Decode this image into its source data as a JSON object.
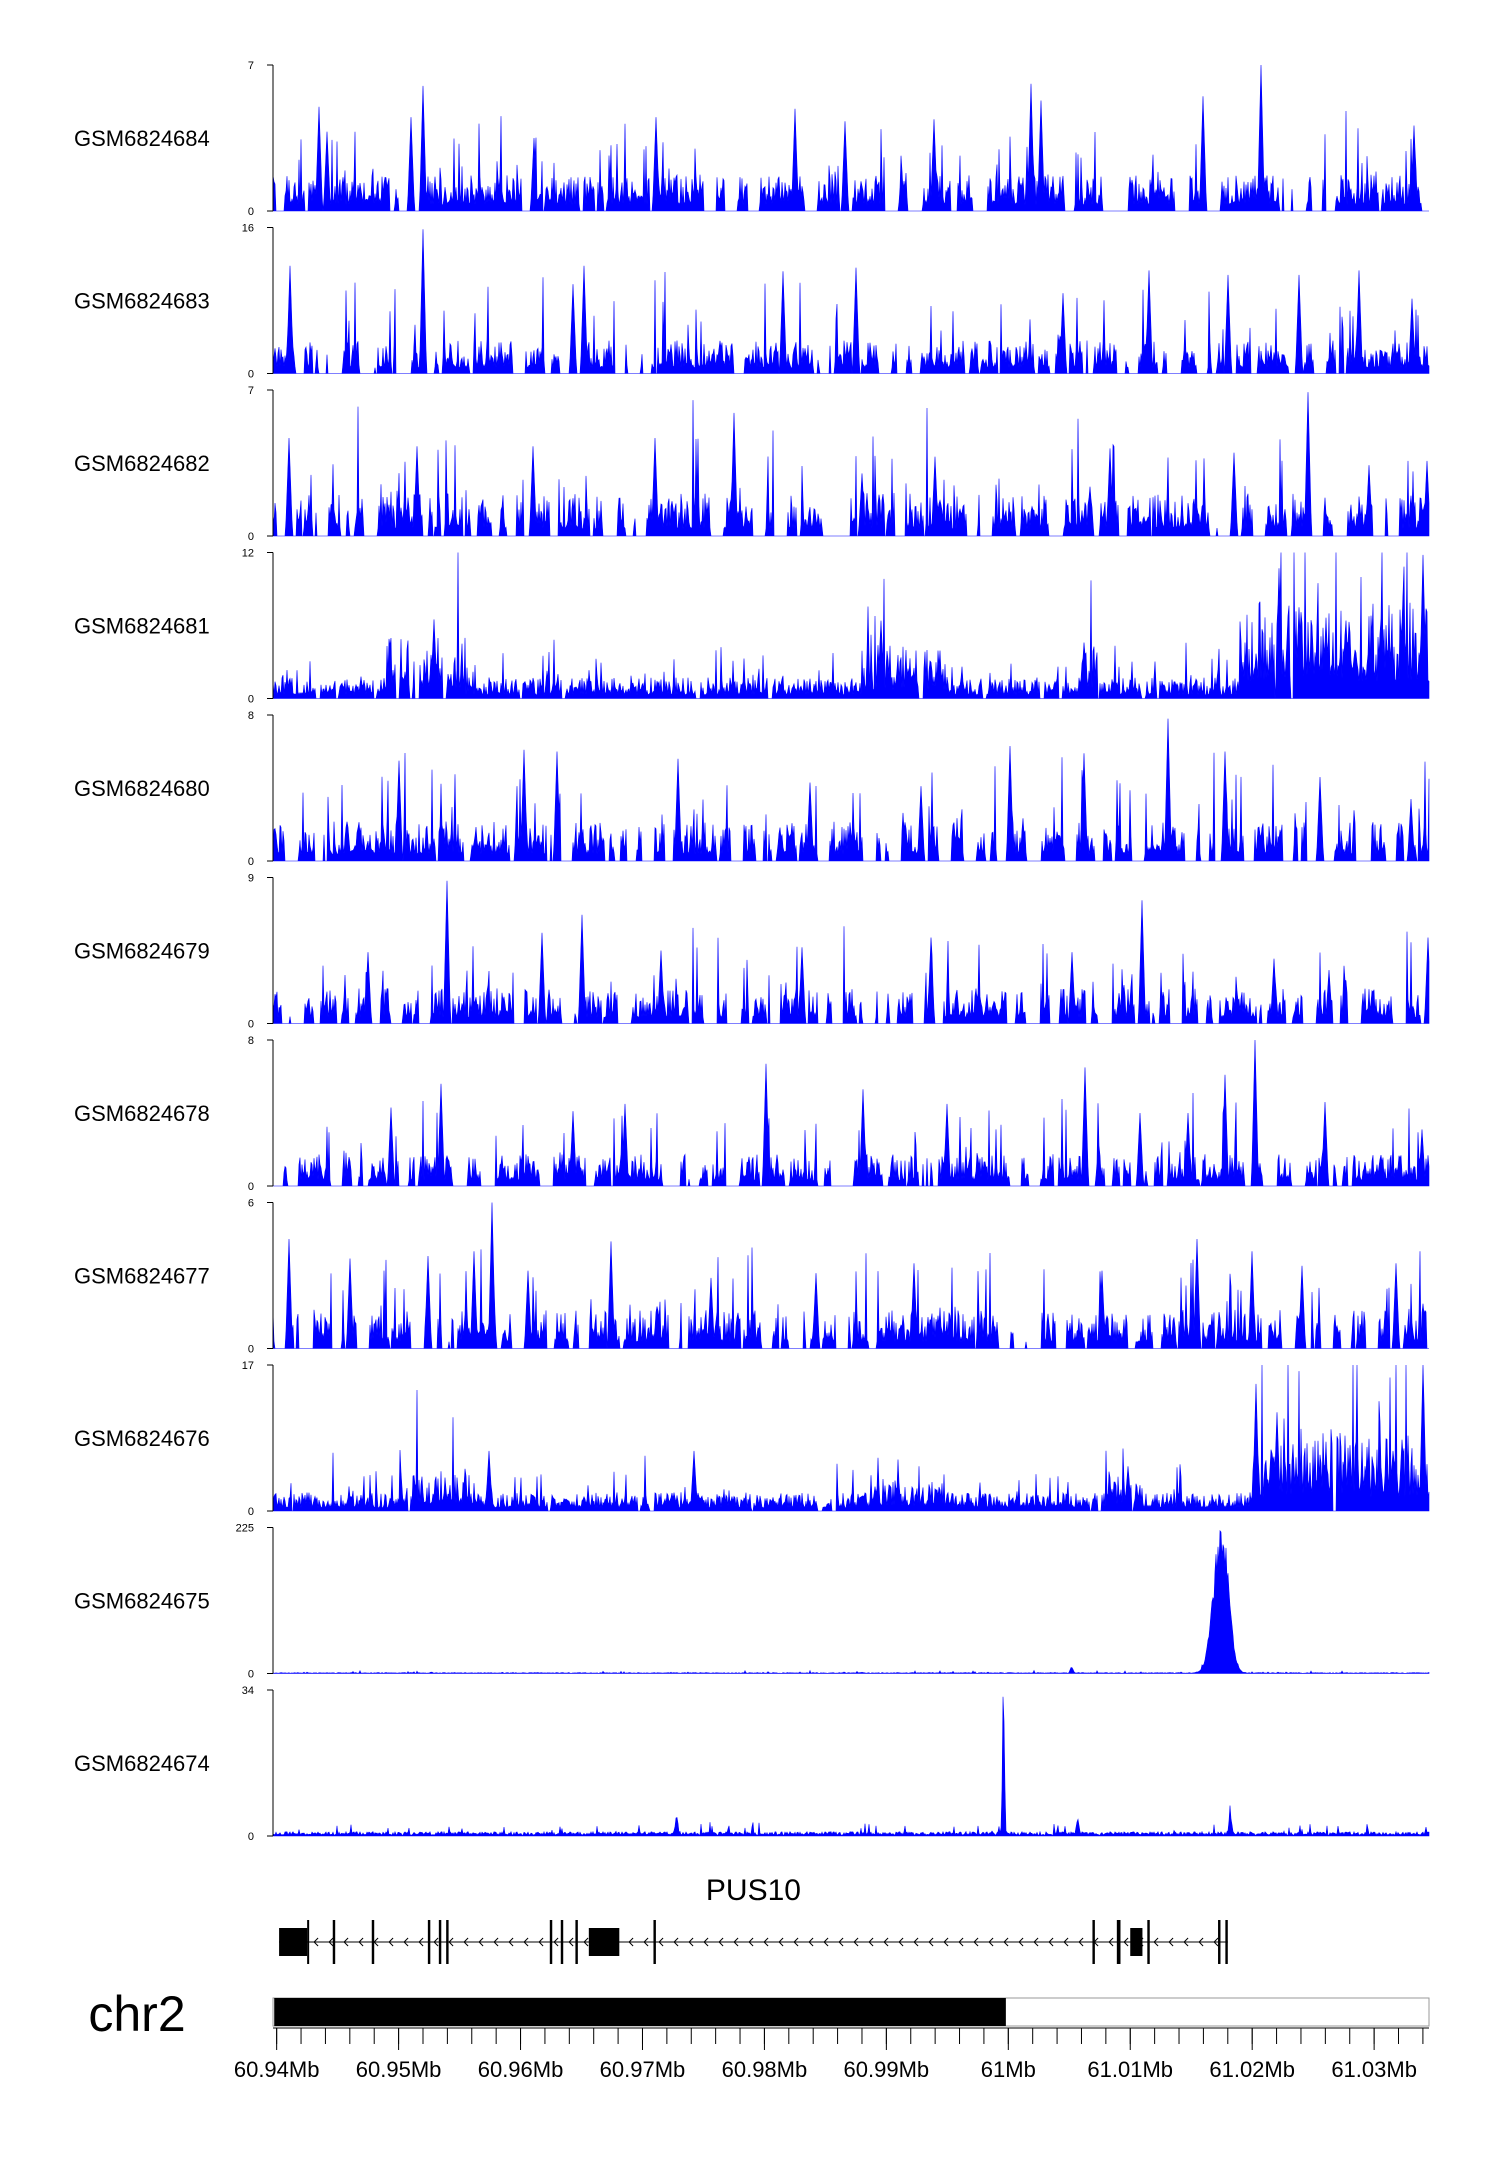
{
  "chart_data": {
    "type": "area",
    "x_range": [
      60.9397,
      61.0345
    ],
    "colors": {
      "signal": "#0000ff",
      "axis": "#000000",
      "chrom_fill": "#000000"
    },
    "tracks": [
      {
        "name": "GSM6824684",
        "ymax": 7,
        "ymin": 0,
        "profile": "sparse",
        "base": 1.2,
        "spikes": [
          [
            60.9441,
            3.8
          ],
          [
            60.9435,
            5.0
          ],
          [
            60.952,
            6.0
          ],
          [
            60.951,
            4.5
          ],
          [
            60.9611,
            3.5
          ],
          [
            60.9711,
            4.5
          ],
          [
            60.9825,
            4.9
          ],
          [
            60.9866,
            4.3
          ],
          [
            60.9939,
            4.4
          ],
          [
            61.0019,
            6.1
          ],
          [
            61.0027,
            5.3
          ],
          [
            61.016,
            5.5
          ],
          [
            61.0207,
            7.0
          ],
          [
            61.0333,
            4.1
          ]
        ]
      },
      {
        "name": "GSM6824683",
        "ymax": 16,
        "ymin": 0,
        "profile": "sparse",
        "base": 2.5,
        "spikes": [
          [
            60.9411,
            11.8
          ],
          [
            60.952,
            15.8
          ],
          [
            60.9652,
            11.8
          ],
          [
            60.9643,
            9.8
          ],
          [
            60.9815,
            11.2
          ],
          [
            60.9875,
            11.6
          ],
          [
            61.0045,
            8.8
          ],
          [
            61.0115,
            11.3
          ],
          [
            61.018,
            10.8
          ],
          [
            61.0238,
            10.8
          ],
          [
            61.0288,
            11.3
          ],
          [
            61.0331,
            8.2
          ]
        ]
      },
      {
        "name": "GSM6824682",
        "ymax": 7,
        "ymin": 0,
        "profile": "sparse",
        "base": 1.4,
        "spikes": [
          [
            60.941,
            4.7
          ],
          [
            60.9515,
            4.3
          ],
          [
            60.961,
            4.3
          ],
          [
            60.971,
            4.7
          ],
          [
            60.9775,
            5.9
          ],
          [
            60.988,
            3.0
          ],
          [
            60.994,
            3.8
          ],
          [
            61.0083,
            4.2
          ],
          [
            61.0185,
            4.0
          ],
          [
            61.0246,
            6.9
          ],
          [
            61.0296,
            3.4
          ],
          [
            61.0343,
            3.6
          ]
        ]
      },
      {
        "name": "GSM6824681",
        "ymax": 12,
        "ymin": 0,
        "profile": "dense",
        "base": 1.2,
        "regions": [
          [
            60.949,
            60.9555,
            3.5
          ],
          [
            60.988,
            60.995,
            2.8
          ],
          [
            61.006,
            61.0075,
            3.2
          ],
          [
            61.019,
            61.0345,
            5.5
          ]
        ],
        "spikes": [
          [
            60.9529,
            6.5
          ],
          [
            60.9896,
            6.4
          ],
          [
            61.0062,
            4.6
          ],
          [
            61.0222,
            10.7
          ],
          [
            61.0238,
            7.5
          ],
          [
            61.0279,
            6.3
          ],
          [
            61.0324,
            8.6
          ],
          [
            61.034,
            11.8
          ]
        ]
      },
      {
        "name": "GSM6824680",
        "ymax": 8,
        "ymin": 0,
        "profile": "sparse",
        "base": 1.5,
        "spikes": [
          [
            60.95,
            5.5
          ],
          [
            60.9603,
            6.1
          ],
          [
            60.963,
            6.0
          ],
          [
            60.9729,
            5.6
          ],
          [
            60.9837,
            4.3
          ],
          [
            60.9928,
            4.1
          ],
          [
            61.0001,
            6.3
          ],
          [
            61.0062,
            5.9
          ],
          [
            61.0131,
            7.8
          ],
          [
            61.0178,
            6.0
          ],
          [
            61.0256,
            4.6
          ],
          [
            61.033,
            3.4
          ]
        ]
      },
      {
        "name": "GSM6824679",
        "ymax": 9,
        "ymin": 0,
        "profile": "sparse",
        "base": 1.5,
        "spikes": [
          [
            60.9475,
            4.4
          ],
          [
            60.954,
            8.8
          ],
          [
            60.9618,
            5.6
          ],
          [
            60.965,
            6.7
          ],
          [
            60.9715,
            4.5
          ],
          [
            60.9831,
            4.7
          ],
          [
            60.9937,
            5.3
          ],
          [
            61.0052,
            4.4
          ],
          [
            61.011,
            7.6
          ],
          [
            61.0218,
            4.0
          ],
          [
            61.0263,
            3.3
          ],
          [
            61.0344,
            5.3
          ]
        ]
      },
      {
        "name": "GSM6824678",
        "ymax": 8,
        "ymin": 0,
        "profile": "sparse",
        "base": 1.2,
        "spikes": [
          [
            60.9494,
            4.3
          ],
          [
            60.9535,
            5.6
          ],
          [
            60.9643,
            4.1
          ],
          [
            60.9686,
            4.5
          ],
          [
            60.9801,
            6.7
          ],
          [
            60.9881,
            5.3
          ],
          [
            60.995,
            4.5
          ],
          [
            61.0063,
            6.5
          ],
          [
            61.0108,
            4.0
          ],
          [
            61.0147,
            4.0
          ],
          [
            61.0178,
            6.1
          ],
          [
            61.0202,
            8.0
          ],
          [
            61.026,
            4.6
          ],
          [
            61.0339,
            3.1
          ]
        ]
      },
      {
        "name": "GSM6824677",
        "ymax": 6,
        "ymin": 0,
        "profile": "sparse",
        "base": 1.1,
        "spikes": [
          [
            60.941,
            4.5
          ],
          [
            60.946,
            3.7
          ],
          [
            60.9524,
            3.8
          ],
          [
            60.9562,
            4.0
          ],
          [
            60.9577,
            6.0
          ],
          [
            60.9606,
            3.2
          ],
          [
            60.9674,
            4.4
          ],
          [
            60.9756,
            2.9
          ],
          [
            60.9842,
            3.1
          ],
          [
            60.9923,
            3.5
          ],
          [
            61.0077,
            3.2
          ],
          [
            61.0155,
            4.5
          ],
          [
            61.02,
            4.0
          ],
          [
            61.0241,
            3.4
          ],
          [
            61.0318,
            3.5
          ]
        ]
      },
      {
        "name": "GSM6824676",
        "ymax": 17,
        "ymin": 0,
        "profile": "dense",
        "base": 1.5,
        "regions": [
          [
            60.95,
            60.956,
            3.2
          ],
          [
            60.989,
            60.995,
            2.4
          ],
          [
            61.008,
            61.011,
            3.0
          ],
          [
            61.02,
            61.0345,
            6.5
          ]
        ],
        "spikes": [
          [
            60.9574,
            7.0
          ],
          [
            60.9742,
            7.0
          ],
          [
            61.0098,
            5.2
          ],
          [
            61.0203,
            14.8
          ],
          [
            61.022,
            11.5
          ],
          [
            61.028,
            6.4
          ],
          [
            61.0323,
            8.3
          ],
          [
            61.034,
            17.0
          ]
        ]
      },
      {
        "name": "GSM6824675",
        "ymax": 225,
        "ymin": 0,
        "profile": "peak",
        "base": 1.5,
        "peaks": [
          [
            61.0174,
            0.0006,
            195
          ],
          [
            61.0179,
            0.0003,
            30
          ],
          [
            61.0052,
            0.0001,
            10
          ]
        ]
      },
      {
        "name": "GSM6824674",
        "ymax": 34,
        "ymin": 0,
        "profile": "peak",
        "base": 1.0,
        "peaks": [
          [
            60.9996,
            8e-05,
            33
          ],
          [
            60.9728,
            0.0001,
            4.5
          ],
          [
            61.0182,
            0.0001,
            5
          ],
          [
            61.0057,
            0.0001,
            3
          ]
        ]
      }
    ],
    "gene": {
      "name": "PUS10",
      "start": 60.9402,
      "end": 61.018,
      "strand": "-",
      "exons": [
        [
          60.9402,
          60.9425
        ],
        [
          60.9425,
          60.9426
        ],
        [
          60.9446,
          60.9448
        ],
        [
          60.9478,
          60.948
        ],
        [
          60.9524,
          60.9526
        ],
        [
          60.9533,
          60.9535
        ],
        [
          60.9539,
          60.9541
        ],
        [
          60.9624,
          60.9626
        ],
        [
          60.9633,
          60.9635
        ],
        [
          60.9645,
          60.9647
        ],
        [
          60.9656,
          60.9681
        ],
        [
          60.9709,
          60.9711
        ],
        [
          61.0069,
          61.0071
        ],
        [
          61.0089,
          61.0092
        ],
        [
          61.01,
          61.011
        ],
        [
          61.0114,
          61.0116
        ],
        [
          61.0172,
          61.0174
        ],
        [
          61.0178,
          61.018
        ]
      ]
    },
    "chromosome": {
      "name": "chr2",
      "highlight": [
        60.9398,
        60.9998
      ]
    },
    "axis": {
      "tick_labels": [
        "60.94Mb",
        "60.95Mb",
        "60.96Mb",
        "60.97Mb",
        "60.98Mb",
        "60.99Mb",
        "61Mb",
        "61.01Mb",
        "61.02Mb",
        "61.03Mb"
      ],
      "tick_values": [
        60.94,
        60.95,
        60.96,
        60.97,
        60.98,
        60.99,
        61.0,
        61.01,
        61.02,
        61.03
      ],
      "minor_step": 0.002
    }
  }
}
